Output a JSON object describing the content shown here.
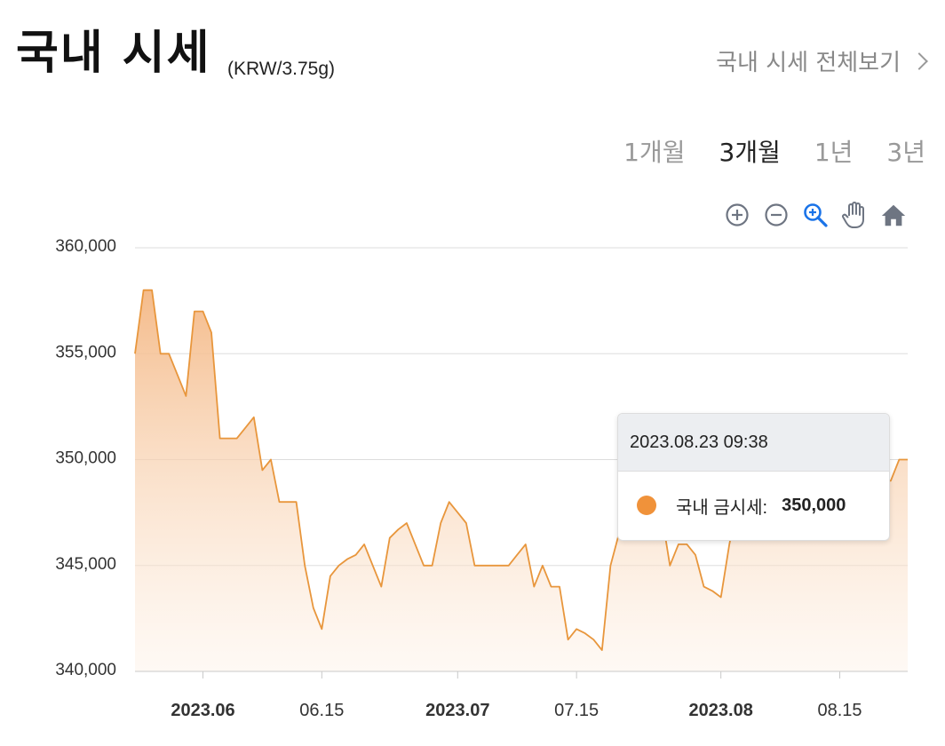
{
  "header": {
    "title": "국내 시세",
    "unit": "(KRW/3.75g)",
    "view_all": "국내 시세 전체보기"
  },
  "periods": [
    {
      "label": "1개월",
      "active": false
    },
    {
      "label": "3개월",
      "active": true
    },
    {
      "label": "1년",
      "active": false
    },
    {
      "label": "3년",
      "active": false
    }
  ],
  "toolbar": {
    "icons": [
      "zoom-in-icon",
      "zoom-out-icon",
      "selection-zoom-icon",
      "pan-hand-icon",
      "reset-home-icon"
    ],
    "active_color": "#1a73e8",
    "icon_color": "#6e7582"
  },
  "tooltip": {
    "date": "2023.08.23 09:38",
    "series_label": "국내 금시세:",
    "value": "350,000"
  },
  "colors": {
    "line": "#e8963c",
    "fill_top": "#f4b885",
    "marker": "#f0923a"
  },
  "chart_data": {
    "type": "area",
    "title": "",
    "xlabel": "",
    "ylabel": "",
    "ylim": [
      340000,
      360000
    ],
    "yticks": [
      "360,000",
      "355,000",
      "350,000",
      "345,000",
      "340,000"
    ],
    "xticks": [
      {
        "label": "2023.06",
        "date": "2023-06-01",
        "bold": true
      },
      {
        "label": "06.15",
        "date": "2023-06-15",
        "bold": false
      },
      {
        "label": "2023.07",
        "date": "2023-07-01",
        "bold": true
      },
      {
        "label": "07.15",
        "date": "2023-07-15",
        "bold": false
      },
      {
        "label": "2023.08",
        "date": "2023-08-01",
        "bold": true
      },
      {
        "label": "08.15",
        "date": "2023-08-15",
        "bold": false
      }
    ],
    "grid": true,
    "series": [
      {
        "name": "국내 금시세",
        "points": [
          [
            "2023-05-24",
            355000
          ],
          [
            "2023-05-25",
            358000
          ],
          [
            "2023-05-26",
            358000
          ],
          [
            "2023-05-27",
            355000
          ],
          [
            "2023-05-28",
            355000
          ],
          [
            "2023-05-29",
            354000
          ],
          [
            "2023-05-30",
            353000
          ],
          [
            "2023-05-31",
            357000
          ],
          [
            "2023-06-01",
            357000
          ],
          [
            "2023-06-02",
            356000
          ],
          [
            "2023-06-03",
            351000
          ],
          [
            "2023-06-04",
            351000
          ],
          [
            "2023-06-05",
            351000
          ],
          [
            "2023-06-06",
            351500
          ],
          [
            "2023-06-07",
            352000
          ],
          [
            "2023-06-08",
            349500
          ],
          [
            "2023-06-09",
            350000
          ],
          [
            "2023-06-10",
            348000
          ],
          [
            "2023-06-11",
            348000
          ],
          [
            "2023-06-12",
            348000
          ],
          [
            "2023-06-13",
            345000
          ],
          [
            "2023-06-14",
            343000
          ],
          [
            "2023-06-15",
            342000
          ],
          [
            "2023-06-16",
            344500
          ],
          [
            "2023-06-17",
            345000
          ],
          [
            "2023-06-18",
            345300
          ],
          [
            "2023-06-19",
            345500
          ],
          [
            "2023-06-20",
            346000
          ],
          [
            "2023-06-21",
            345000
          ],
          [
            "2023-06-22",
            344000
          ],
          [
            "2023-06-23",
            346300
          ],
          [
            "2023-06-24",
            346700
          ],
          [
            "2023-06-25",
            347000
          ],
          [
            "2023-06-26",
            346000
          ],
          [
            "2023-06-27",
            345000
          ],
          [
            "2023-06-28",
            345000
          ],
          [
            "2023-06-29",
            347000
          ],
          [
            "2023-06-30",
            348000
          ],
          [
            "2023-07-01",
            347500
          ],
          [
            "2023-07-02",
            347000
          ],
          [
            "2023-07-03",
            345000
          ],
          [
            "2023-07-04",
            345000
          ],
          [
            "2023-07-05",
            345000
          ],
          [
            "2023-07-06",
            345000
          ],
          [
            "2023-07-07",
            345000
          ],
          [
            "2023-07-08",
            345500
          ],
          [
            "2023-07-09",
            346000
          ],
          [
            "2023-07-10",
            344000
          ],
          [
            "2023-07-11",
            345000
          ],
          [
            "2023-07-12",
            344000
          ],
          [
            "2023-07-13",
            344000
          ],
          [
            "2023-07-14",
            341500
          ],
          [
            "2023-07-15",
            342000
          ],
          [
            "2023-07-16",
            341800
          ],
          [
            "2023-07-17",
            341500
          ],
          [
            "2023-07-18",
            341000
          ],
          [
            "2023-07-19",
            345000
          ],
          [
            "2023-07-20",
            346500
          ],
          [
            "2023-07-21",
            348500
          ],
          [
            "2023-07-22",
            349000
          ],
          [
            "2023-07-23",
            348500
          ],
          [
            "2023-07-24",
            347000
          ],
          [
            "2023-07-25",
            347500
          ],
          [
            "2023-07-26",
            345000
          ],
          [
            "2023-07-27",
            346000
          ],
          [
            "2023-07-28",
            346000
          ],
          [
            "2023-07-29",
            345500
          ],
          [
            "2023-07-30",
            344000
          ],
          [
            "2023-07-31",
            343800
          ],
          [
            "2023-08-01",
            343500
          ],
          [
            "2023-08-02",
            346000
          ],
          [
            "2023-08-03",
            348000
          ],
          [
            "2023-08-04",
            349000
          ],
          [
            "2023-08-05",
            349500
          ],
          [
            "2023-08-06",
            349800
          ],
          [
            "2023-08-07",
            350000
          ],
          [
            "2023-08-08",
            350000
          ],
          [
            "2023-08-09",
            350000
          ],
          [
            "2023-08-10",
            350000
          ],
          [
            "2023-08-11",
            349800
          ],
          [
            "2023-08-12",
            349500
          ],
          [
            "2023-08-13",
            349500
          ],
          [
            "2023-08-14",
            349500
          ],
          [
            "2023-08-15",
            349500
          ],
          [
            "2023-08-16",
            349000
          ],
          [
            "2023-08-17",
            349000
          ],
          [
            "2023-08-18",
            349000
          ],
          [
            "2023-08-19",
            349000
          ],
          [
            "2023-08-20",
            349000
          ],
          [
            "2023-08-21",
            349000
          ],
          [
            "2023-08-22",
            350000
          ],
          [
            "2023-08-23",
            350000
          ]
        ]
      }
    ]
  }
}
